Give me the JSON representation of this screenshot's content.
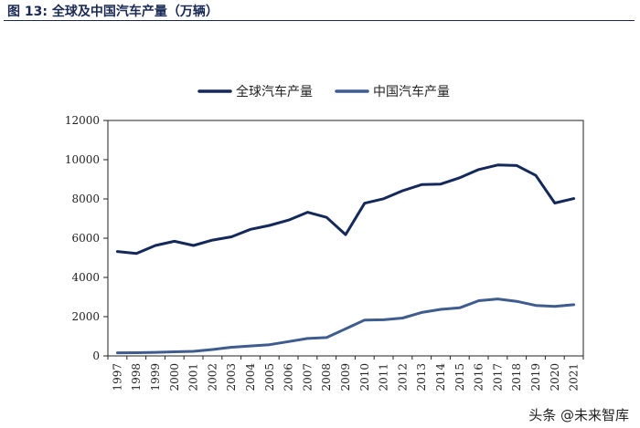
{
  "figure": {
    "title": "图 13:  全球及中国汽车产量（万辆）"
  },
  "watermark": {
    "text": "头条 @未来智库"
  },
  "chart_data": {
    "type": "line",
    "x": [
      "1997",
      "1998",
      "1999",
      "2000",
      "2001",
      "2002",
      "2003",
      "2004",
      "2005",
      "2006",
      "2007",
      "2008",
      "2009",
      "2010",
      "2011",
      "2012",
      "2013",
      "2014",
      "2015",
      "2016",
      "2017",
      "2018",
      "2019",
      "2020",
      "2021"
    ],
    "ylim": [
      0,
      12000
    ],
    "yticks": [
      0,
      2000,
      4000,
      6000,
      8000,
      10000,
      12000
    ],
    "legend_position": "top-center",
    "grid": false,
    "series": [
      {
        "name": "全球汽车产量",
        "color": "#14285a",
        "values": [
          5320,
          5220,
          5630,
          5840,
          5630,
          5900,
          6070,
          6450,
          6650,
          6920,
          7320,
          7060,
          6180,
          7780,
          8010,
          8420,
          8730,
          8760,
          9080,
          9500,
          9730,
          9700,
          9200,
          7790,
          8020
        ]
      },
      {
        "name": "中国汽车产量",
        "color": "#3f5c8f",
        "values": [
          160,
          163,
          183,
          207,
          234,
          325,
          444,
          507,
          571,
          728,
          888,
          935,
          1380,
          1827,
          1842,
          1928,
          2212,
          2372,
          2450,
          2812,
          2902,
          2781,
          2572,
          2523,
          2608
        ]
      }
    ]
  }
}
